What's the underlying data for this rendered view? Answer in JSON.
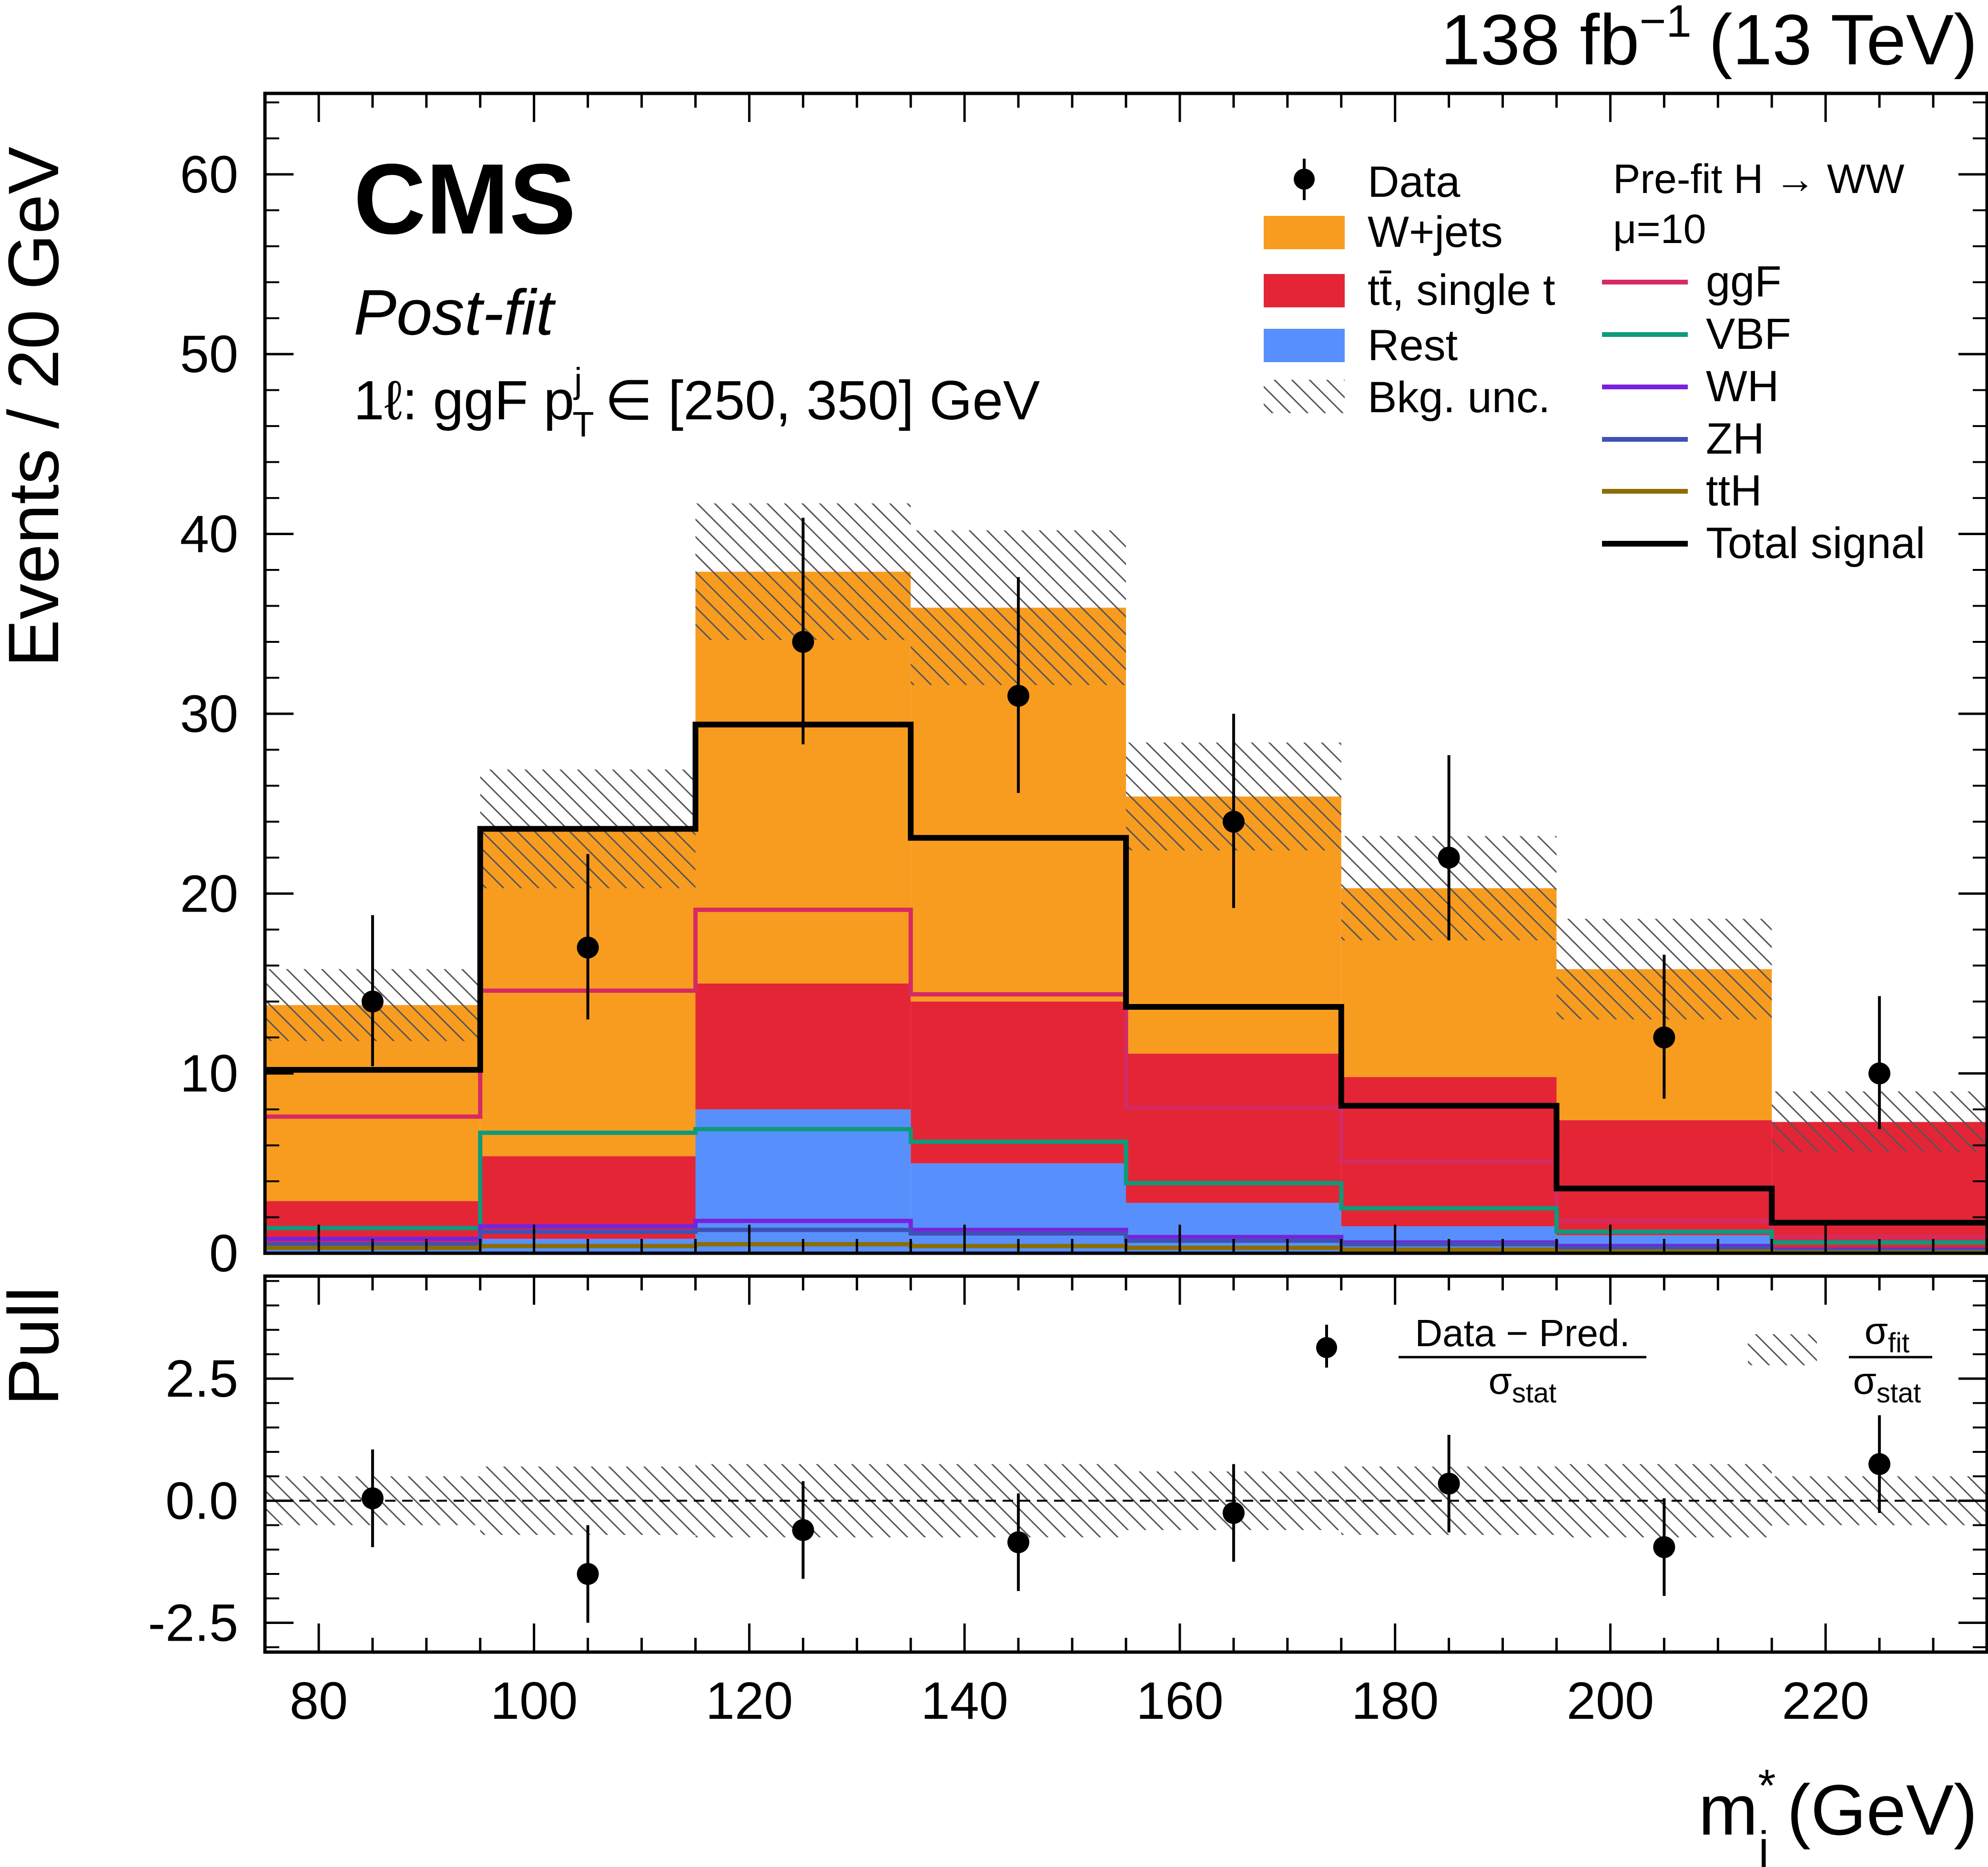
{
  "header": {
    "lumi": "138 fb",
    "lumi_exp": "−1",
    "energy": "(13 TeV)"
  },
  "labels": {
    "cms": "CMS",
    "postfit": "Post-fit",
    "region_pre": "1ℓ: ggF p",
    "region_sup": "j",
    "region_sub": "T",
    "region_post": "∈ [250, 350] GeV",
    "ylabel_top": "Events / 20 GeV",
    "ylabel_bottom": "Pull",
    "xlabel_main": "m",
    "xlabel_sup": "*",
    "xlabel_sub": "j",
    "xlabel_unit": "(GeV)"
  },
  "legend": {
    "data": "Data",
    "wjets": "W+jets",
    "tt": "tt̄, single t",
    "rest": "Rest",
    "bkgunc": "Bkg. unc.",
    "signal_title": "Pre-fit H → WW",
    "mu": "μ=10",
    "ggf": "ggF",
    "vbf": "VBF",
    "wh": "WH",
    "zh": "ZH",
    "tth": "ttH",
    "total": "Total signal",
    "pull_num": "Data − Pred.",
    "pull_den": "σ",
    "pull_den_sub": "stat",
    "fit_num": "σ",
    "fit_num_sub": "fit",
    "fit_den": "σ",
    "fit_den_sub": "stat"
  },
  "colors": {
    "wjets": "#f89c20",
    "tt": "#e42536",
    "rest": "#5790fc",
    "ggf": "#d62a63",
    "vbf": "#0f9a7a",
    "wh": "#7a21dd",
    "zh": "#3f51b5",
    "tth": "#8c6d00",
    "total": "#000000"
  },
  "chart_data": {
    "type": "bar",
    "style": "stacked-histogram-with-ratio",
    "bin_edges": [
      75,
      95,
      115,
      135,
      155,
      175,
      195,
      215,
      235
    ],
    "bin_centers": [
      85,
      105,
      125,
      145,
      165,
      185,
      205,
      225
    ],
    "xlim": [
      75,
      235
    ],
    "ylim": [
      0,
      64.5
    ],
    "xticks": [
      "80",
      "100",
      "120",
      "140",
      "160",
      "180",
      "200",
      "220"
    ],
    "xtick_values": [
      80,
      100,
      120,
      140,
      160,
      180,
      200,
      220
    ],
    "yticks": [
      "0",
      "10",
      "20",
      "30",
      "40",
      "50",
      "60"
    ],
    "ytick_values": [
      0,
      10,
      20,
      30,
      40,
      50,
      60
    ],
    "stack": [
      {
        "name": "Rest",
        "values": [
          0.5,
          0.8,
          8.0,
          5.0,
          2.8,
          1.5,
          1.0,
          0.2
        ]
      },
      {
        "name": "tt̄, single t",
        "values": [
          2.4,
          4.6,
          7.0,
          9.0,
          8.3,
          8.3,
          6.4,
          7.1
        ]
      },
      {
        "name": "W+jets",
        "values": [
          10.9,
          18.2,
          22.9,
          21.9,
          14.3,
          10.5,
          8.4,
          0.0
        ]
      }
    ],
    "total_bkg": [
      13.8,
      23.6,
      37.9,
      35.9,
      25.4,
      20.3,
      15.8,
      7.3
    ],
    "bkg_unc": [
      2.0,
      3.3,
      3.8,
      4.3,
      3.0,
      2.9,
      2.8,
      1.7
    ],
    "data": {
      "name": "Data",
      "values": [
        14,
        17,
        34,
        31,
        24,
        22,
        12,
        10
      ],
      "err_up": [
        4.8,
        5.2,
        6.9,
        6.6,
        6.0,
        5.7,
        4.6,
        4.3
      ],
      "err_down": [
        3.6,
        4.0,
        5.7,
        5.4,
        4.8,
        4.6,
        3.4,
        3.1
      ]
    },
    "signals": [
      {
        "name": "ggF",
        "color_key": "ggf",
        "values": [
          7.6,
          14.6,
          19.1,
          14.4,
          8.1,
          5.1,
          1.8,
          0.9
        ]
      },
      {
        "name": "VBF",
        "color_key": "vbf",
        "values": [
          1.4,
          6.7,
          6.9,
          6.2,
          3.9,
          2.5,
          1.2,
          0.6
        ]
      },
      {
        "name": "WH",
        "color_key": "wh",
        "values": [
          0.8,
          1.5,
          1.8,
          1.3,
          0.9,
          0.6,
          0.4,
          0.2
        ]
      },
      {
        "name": "ZH",
        "color_key": "zh",
        "values": [
          0.5,
          1.2,
          1.3,
          1.1,
          0.7,
          0.5,
          0.3,
          0.15
        ]
      },
      {
        "name": "ttH",
        "color_key": "tth",
        "values": [
          0.3,
          0.4,
          0.5,
          0.4,
          0.3,
          0.2,
          0.1,
          0.05
        ]
      },
      {
        "name": "Total signal",
        "color_key": "total",
        "values": [
          10.2,
          23.6,
          29.4,
          23.1,
          13.7,
          8.2,
          3.6,
          1.7
        ]
      }
    ],
    "pull": {
      "ylim": [
        -3.1,
        4.6
      ],
      "yticks": [
        "-2.5",
        "0.0",
        "2.5"
      ],
      "ytick_values": [
        -2.5,
        0.0,
        2.5
      ],
      "values": [
        0.05,
        -1.5,
        -0.6,
        -0.85,
        -0.25,
        0.35,
        -0.95,
        0.75
      ],
      "err": [
        1.0,
        1.0,
        1.0,
        1.0,
        1.0,
        1.0,
        1.0,
        1.0
      ],
      "fit_band": [
        0.5,
        0.7,
        0.75,
        0.75,
        0.6,
        0.7,
        0.75,
        0.5
      ]
    },
    "ylabel": "Events / 20 GeV",
    "ylabel_ratio": "Pull",
    "xlabel": "m*j (GeV)"
  }
}
